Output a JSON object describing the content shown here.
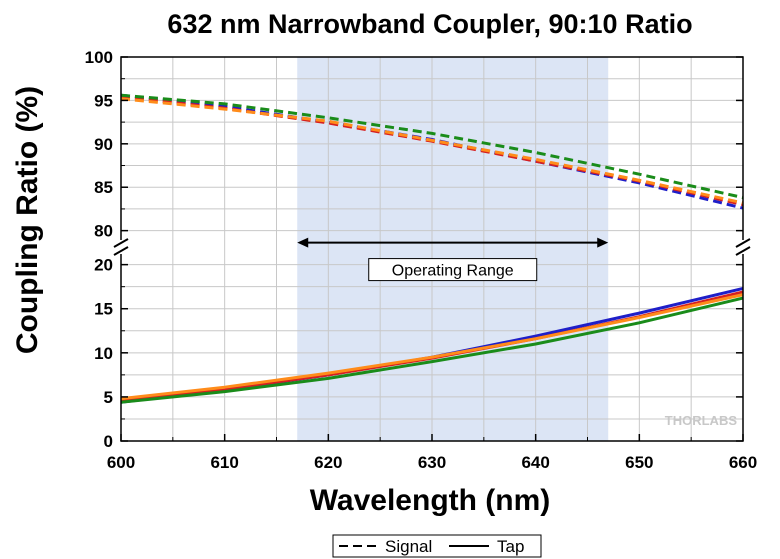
{
  "chart_data": {
    "type": "line",
    "title": "632 nm Narrowband Coupler, 90:10 Ratio",
    "xlabel": "Wavelength (nm)",
    "ylabel": "Coupling Ratio (%)",
    "xlim": [
      600,
      660
    ],
    "ylim_upper": [
      78,
      100
    ],
    "ylim_lower": [
      0,
      22
    ],
    "x_ticks": [
      600,
      610,
      620,
      630,
      640,
      650,
      660
    ],
    "y_ticks_upper": [
      80,
      85,
      90,
      95,
      100
    ],
    "y_ticks_lower": [
      0,
      5,
      10,
      15,
      20
    ],
    "grid": true,
    "shaded_region": [
      617,
      647
    ],
    "annotation": {
      "text": "Operating Range",
      "x_from": 617,
      "x_to": 647,
      "y": 22.5
    },
    "watermark": "THORLABS",
    "legend": {
      "position": "bottom-center",
      "entries": [
        {
          "label": "Signal",
          "style": "dashed"
        },
        {
          "label": "Tap",
          "style": "solid"
        }
      ]
    },
    "series": [
      {
        "role": "Signal",
        "color": "#1f1fc8",
        "style": "dashed",
        "x": [
          600,
          610,
          620,
          630,
          640,
          650,
          660
        ],
        "y": [
          95.6,
          94.3,
          92.5,
          90.5,
          88.0,
          85.5,
          82.6
        ]
      },
      {
        "role": "Signal",
        "color": "#d62020",
        "style": "dashed",
        "x": [
          600,
          610,
          620,
          630,
          640,
          650,
          660
        ],
        "y": [
          95.4,
          94.1,
          92.4,
          90.3,
          88.0,
          85.7,
          83.0
        ]
      },
      {
        "role": "Signal",
        "color": "#ff8c1a",
        "style": "dashed",
        "x": [
          600,
          610,
          620,
          630,
          640,
          650,
          660
        ],
        "y": [
          95.2,
          94.0,
          92.6,
          90.4,
          88.2,
          85.8,
          83.2
        ]
      },
      {
        "role": "Signal",
        "color": "#1a8c1a",
        "style": "dashed",
        "x": [
          600,
          610,
          620,
          630,
          640,
          650,
          660
        ],
        "y": [
          95.6,
          94.6,
          93.0,
          91.2,
          89.0,
          86.5,
          83.8
        ]
      },
      {
        "role": "Tap",
        "color": "#1f1fc8",
        "style": "solid",
        "x": [
          600,
          610,
          620,
          630,
          640,
          650,
          660
        ],
        "y": [
          4.4,
          5.8,
          7.5,
          9.5,
          11.9,
          14.5,
          17.3
        ]
      },
      {
        "role": "Tap",
        "color": "#d62020",
        "style": "solid",
        "x": [
          600,
          610,
          620,
          630,
          640,
          650,
          660
        ],
        "y": [
          4.6,
          5.9,
          7.5,
          9.4,
          11.6,
          14.1,
          16.9
        ]
      },
      {
        "role": "Tap",
        "color": "#ff8c1a",
        "style": "solid",
        "x": [
          600,
          610,
          620,
          630,
          640,
          650,
          660
        ],
        "y": [
          4.8,
          6.1,
          7.7,
          9.5,
          11.6,
          14.0,
          16.6
        ]
      },
      {
        "role": "Tap",
        "color": "#1a8c1a",
        "style": "solid",
        "x": [
          600,
          610,
          620,
          630,
          640,
          650,
          660
        ],
        "y": [
          4.4,
          5.6,
          7.1,
          9.0,
          11.0,
          13.4,
          16.2
        ]
      }
    ]
  }
}
